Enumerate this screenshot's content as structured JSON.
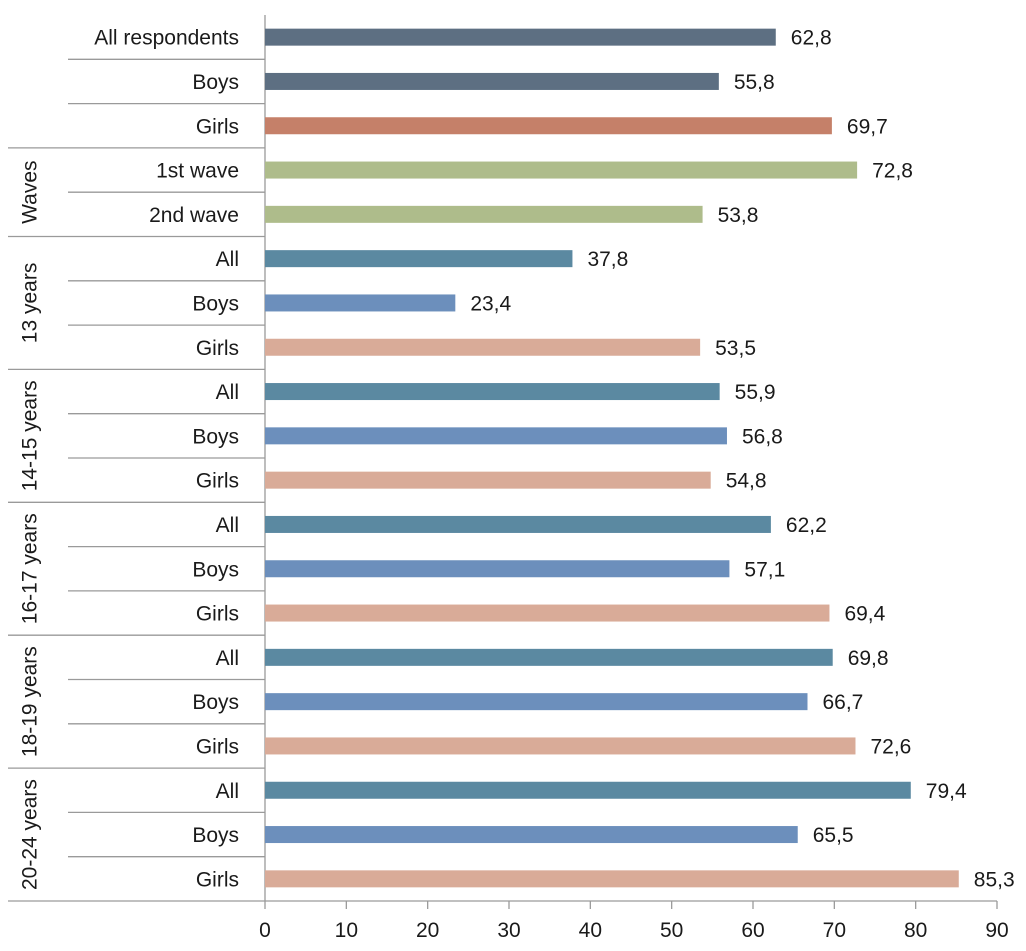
{
  "chart_data": {
    "type": "bar",
    "orientation": "horizontal",
    "xlim": [
      0,
      90
    ],
    "xticks": [
      0,
      10,
      20,
      30,
      40,
      50,
      60,
      70,
      80,
      90
    ],
    "xtick_labels": [
      "0",
      "10",
      "20",
      "30",
      "40",
      "50",
      "60",
      "70",
      "80",
      "90"
    ],
    "grid": false,
    "rows": [
      {
        "group": "",
        "label": "All respondents",
        "value": 62.8,
        "value_label": "62,8",
        "color": "#5d6f82"
      },
      {
        "group": "",
        "label": "Boys",
        "value": 55.8,
        "value_label": "55,8",
        "color": "#5d6f82"
      },
      {
        "group": "",
        "label": "Girls",
        "value": 69.7,
        "value_label": "69,7",
        "color": "#c58069"
      },
      {
        "group": "Waves",
        "label": "1st wave",
        "value": 72.8,
        "value_label": "72,8",
        "color": "#aebc8b"
      },
      {
        "group": "Waves",
        "label": "2nd wave",
        "value": 53.8,
        "value_label": "53,8",
        "color": "#aebc8b"
      },
      {
        "group": "13 years",
        "label": "All",
        "value": 37.8,
        "value_label": "37,8",
        "color": "#5b89a1"
      },
      {
        "group": "13 years",
        "label": "Boys",
        "value": 23.4,
        "value_label": "23,4",
        "color": "#6c8fbc"
      },
      {
        "group": "13 years",
        "label": "Girls",
        "value": 53.5,
        "value_label": "53,5",
        "color": "#d9ab98"
      },
      {
        "group": "14-15 years",
        "label": "All",
        "value": 55.9,
        "value_label": "55,9",
        "color": "#5b89a1"
      },
      {
        "group": "14-15 years",
        "label": "Boys",
        "value": 56.8,
        "value_label": "56,8",
        "color": "#6c8fbc"
      },
      {
        "group": "14-15 years",
        "label": "Girls",
        "value": 54.8,
        "value_label": "54,8",
        "color": "#d9ab98"
      },
      {
        "group": "16-17 years",
        "label": "All",
        "value": 62.2,
        "value_label": "62,2",
        "color": "#5b89a1"
      },
      {
        "group": "16-17 years",
        "label": "Boys",
        "value": 57.1,
        "value_label": "57,1",
        "color": "#6c8fbc"
      },
      {
        "group": "16-17 years",
        "label": "Girls",
        "value": 69.4,
        "value_label": "69,4",
        "color": "#d9ab98"
      },
      {
        "group": "18-19 years",
        "label": "All",
        "value": 69.8,
        "value_label": "69,8",
        "color": "#5b89a1"
      },
      {
        "group": "18-19 years",
        "label": "Boys",
        "value": 66.7,
        "value_label": "66,7",
        "color": "#6c8fbc"
      },
      {
        "group": "18-19 years",
        "label": "Girls",
        "value": 72.6,
        "value_label": "72,6",
        "color": "#d9ab98"
      },
      {
        "group": "20-24 years",
        "label": "All",
        "value": 79.4,
        "value_label": "79,4",
        "color": "#5b89a1"
      },
      {
        "group": "20-24 years",
        "label": "Boys",
        "value": 65.5,
        "value_label": "65,5",
        "color": "#6c8fbc"
      },
      {
        "group": "20-24 years",
        "label": "Girls",
        "value": 85.3,
        "value_label": "85,3",
        "color": "#d9ab98"
      }
    ],
    "groups": [
      "Waves",
      "13 years",
      "14-15 years",
      "16-17 years",
      "18-19 years",
      "20-24 years"
    ]
  }
}
